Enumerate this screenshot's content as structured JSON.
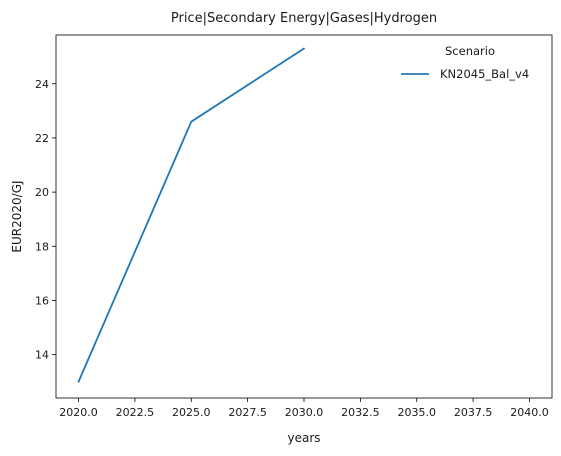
{
  "chart_data": {
    "type": "line",
    "title": "Price|Secondary Energy|Gases|Hydrogen",
    "xlabel": "years",
    "ylabel": "EUR2020/GJ",
    "xlim": [
      2019.0,
      2041.0
    ],
    "ylim": [
      12.4,
      25.8
    ],
    "xticks": [
      2020.0,
      2022.5,
      2025.0,
      2027.5,
      2030.0,
      2032.5,
      2035.0,
      2037.5,
      2040.0
    ],
    "xtick_labels": [
      "2020.0",
      "2022.5",
      "2025.0",
      "2027.5",
      "2030.0",
      "2032.5",
      "2035.0",
      "2037.5",
      "2040.0"
    ],
    "yticks": [
      14,
      16,
      18,
      20,
      22,
      24
    ],
    "ytick_labels": [
      "14",
      "16",
      "18",
      "20",
      "22",
      "24"
    ],
    "grid": false,
    "legend": {
      "title": "Scenario",
      "placement": "top-right"
    },
    "series": [
      {
        "name": "KN2045_Bal_v4",
        "color": "#1f77b4",
        "x": [
          2020,
          2025,
          2030
        ],
        "y": [
          13.0,
          22.6,
          25.3
        ]
      }
    ]
  }
}
